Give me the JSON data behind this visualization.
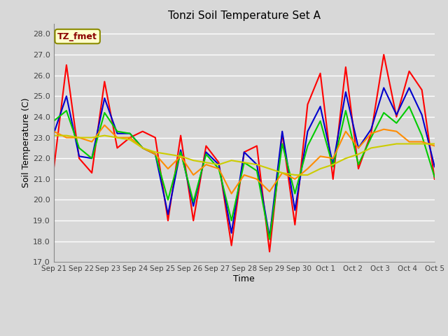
{
  "title": "Tonzi Soil Temperature Set A",
  "xlabel": "Time",
  "ylabel": "Soil Temperature (C)",
  "ylim": [
    17.0,
    28.5
  ],
  "yticks": [
    17.0,
    18.0,
    19.0,
    20.0,
    21.0,
    22.0,
    23.0,
    24.0,
    25.0,
    26.0,
    27.0,
    28.0
  ],
  "xtick_labels": [
    "Sep 21",
    "Sep 22",
    "Sep 23",
    "Sep 24",
    "Sep 25",
    "Sep 26",
    "Sep 27",
    "Sep 28",
    "Sep 29",
    "Sep 30",
    "Oct 1",
    "Oct 2",
    "Oct 3",
    "Oct 4",
    "Oct 5"
  ],
  "annotation": "TZ_fmet",
  "background_color": "#d8d8d8",
  "plot_bg_color": "#d8d8d8",
  "grid_color": "white",
  "series": {
    "2cm": {
      "color": "#ff0000",
      "values": [
        21.5,
        26.5,
        22.0,
        21.3,
        25.7,
        22.5,
        23.0,
        23.3,
        23.0,
        19.0,
        23.1,
        19.0,
        22.6,
        21.8,
        17.8,
        22.3,
        22.6,
        17.5,
        23.2,
        18.8,
        24.6,
        26.1,
        21.0,
        26.4,
        21.5,
        23.2,
        27.0,
        24.0,
        26.2,
        25.3,
        21.0
      ]
    },
    "4cm": {
      "color": "#0000cd",
      "values": [
        23.2,
        25.0,
        22.1,
        22.0,
        24.9,
        23.2,
        23.2,
        22.5,
        22.2,
        19.3,
        22.4,
        19.7,
        22.3,
        21.7,
        18.4,
        22.3,
        21.7,
        18.2,
        23.3,
        19.5,
        23.3,
        24.5,
        21.7,
        25.2,
        22.5,
        23.4,
        25.4,
        24.1,
        25.4,
        24.1,
        21.6
      ]
    },
    "8cm": {
      "color": "#00cc00",
      "values": [
        23.8,
        24.3,
        22.5,
        22.0,
        24.2,
        23.3,
        23.2,
        22.5,
        22.2,
        20.0,
        22.3,
        19.9,
        22.2,
        21.5,
        19.0,
        21.8,
        21.4,
        18.1,
        22.7,
        20.3,
        22.6,
        23.8,
        21.6,
        24.3,
        21.7,
        23.0,
        24.2,
        23.7,
        24.5,
        23.1,
        21.1
      ]
    },
    "16cm": {
      "color": "#ff8c00",
      "values": [
        23.3,
        23.0,
        23.0,
        22.8,
        23.6,
        23.0,
        23.0,
        22.5,
        22.2,
        21.5,
        22.1,
        21.2,
        21.7,
        21.5,
        20.3,
        21.2,
        21.0,
        20.4,
        21.3,
        21.0,
        21.5,
        22.1,
        22.0,
        23.3,
        22.5,
        23.2,
        23.4,
        23.3,
        22.8,
        22.8,
        22.6
      ]
    },
    "32cm": {
      "color": "#cccc00",
      "values": [
        23.1,
        23.1,
        23.0,
        23.0,
        23.1,
        23.0,
        22.9,
        22.5,
        22.3,
        22.2,
        22.1,
        21.9,
        21.8,
        21.7,
        21.9,
        21.8,
        21.7,
        21.5,
        21.3,
        21.2,
        21.2,
        21.5,
        21.7,
        22.0,
        22.2,
        22.5,
        22.6,
        22.7,
        22.7,
        22.7,
        22.7
      ]
    }
  }
}
